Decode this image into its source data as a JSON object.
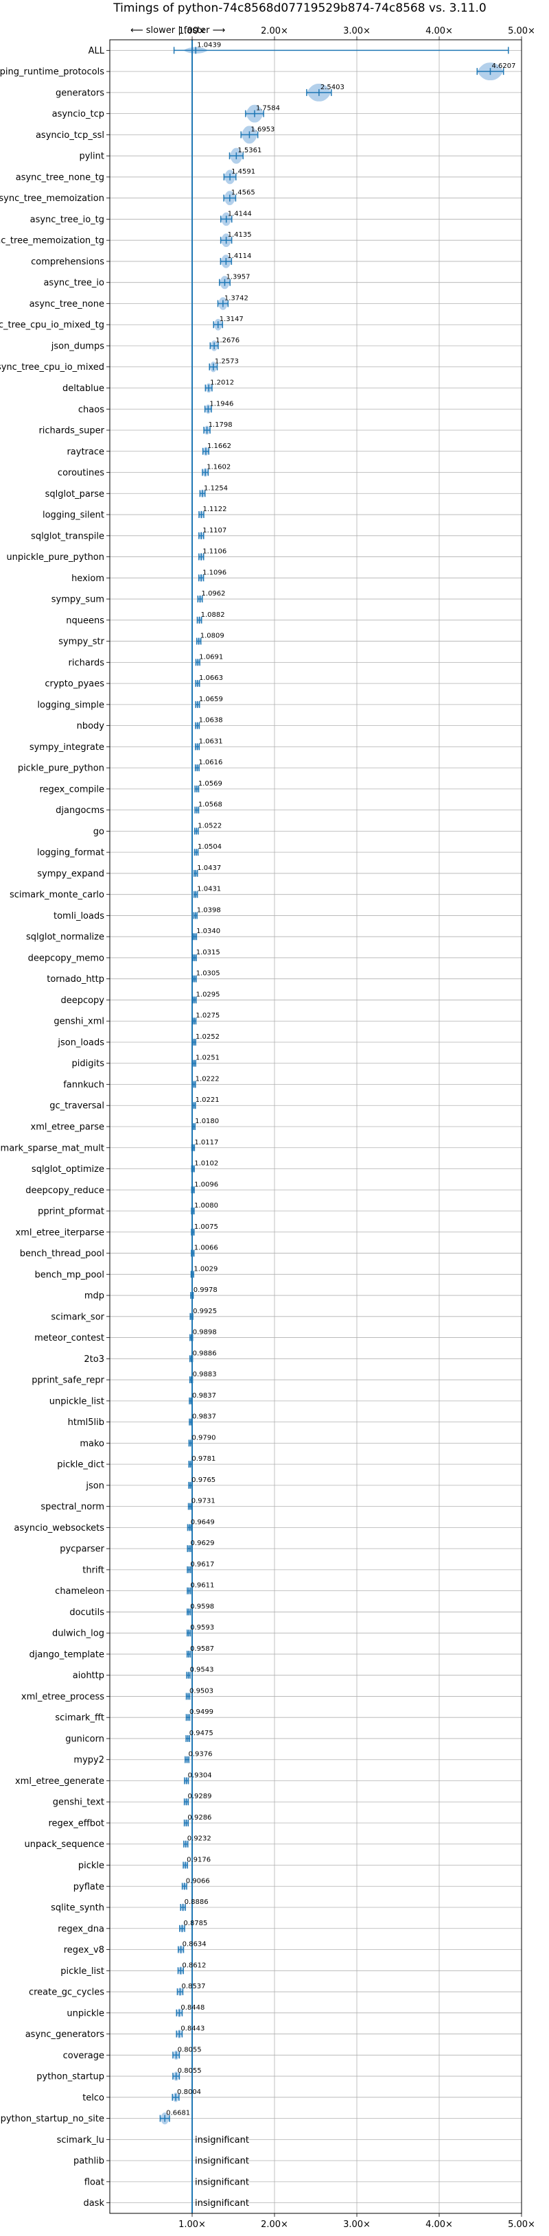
{
  "chart_data": {
    "type": "violin",
    "title": "Timings of python-74c8568d07719529b874-74c8568 vs. 3.11.0",
    "direction_label": "⟵ slower | faster ⟶",
    "xlim": [
      0,
      5
    ],
    "xticks": [
      1,
      2,
      3,
      4,
      5
    ],
    "xtick_labels": [
      "1.00×",
      "2.00×",
      "3.00×",
      "4.00×",
      "5.00×"
    ],
    "reference_line": 1.0,
    "grid": true,
    "colors": {
      "violin": "#a6c8e8",
      "line": "#1f77b4",
      "reference": "#1f77b4"
    },
    "benchmarks": [
      {
        "name": "ALL",
        "value": 1.0439,
        "label": "1.0439"
      },
      {
        "name": "typing_runtime_protocols",
        "value": 4.6207,
        "label": "4.6207"
      },
      {
        "name": "generators",
        "value": 2.5403,
        "label": "2.5403"
      },
      {
        "name": "asyncio_tcp",
        "value": 1.7584,
        "label": "1.7584"
      },
      {
        "name": "asyncio_tcp_ssl",
        "value": 1.6953,
        "label": "1.6953"
      },
      {
        "name": "pylint",
        "value": 1.5361,
        "label": "1.5361"
      },
      {
        "name": "async_tree_none_tg",
        "value": 1.4591,
        "label": "1.4591"
      },
      {
        "name": "async_tree_memoization",
        "value": 1.4565,
        "label": "1.4565"
      },
      {
        "name": "async_tree_io_tg",
        "value": 1.4144,
        "label": "1.4144"
      },
      {
        "name": "async_tree_memoization_tg",
        "value": 1.4135,
        "label": "1.4135"
      },
      {
        "name": "comprehensions",
        "value": 1.4114,
        "label": "1.4114"
      },
      {
        "name": "async_tree_io",
        "value": 1.3957,
        "label": "1.3957"
      },
      {
        "name": "async_tree_none",
        "value": 1.3742,
        "label": "1.3742"
      },
      {
        "name": "async_tree_cpu_io_mixed_tg",
        "value": 1.3147,
        "label": "1.3147"
      },
      {
        "name": "json_dumps",
        "value": 1.2676,
        "label": "1.2676"
      },
      {
        "name": "async_tree_cpu_io_mixed",
        "value": 1.2573,
        "label": "1.2573"
      },
      {
        "name": "deltablue",
        "value": 1.2012,
        "label": "1.2012"
      },
      {
        "name": "chaos",
        "value": 1.1946,
        "label": "1.1946"
      },
      {
        "name": "richards_super",
        "value": 1.1798,
        "label": "1.1798"
      },
      {
        "name": "raytrace",
        "value": 1.1662,
        "label": "1.1662"
      },
      {
        "name": "coroutines",
        "value": 1.1602,
        "label": "1.1602"
      },
      {
        "name": "sqlglot_parse",
        "value": 1.1254,
        "label": "1.1254"
      },
      {
        "name": "logging_silent",
        "value": 1.1122,
        "label": "1.1122"
      },
      {
        "name": "sqlglot_transpile",
        "value": 1.1107,
        "label": "1.1107"
      },
      {
        "name": "unpickle_pure_python",
        "value": 1.1106,
        "label": "1.1106"
      },
      {
        "name": "hexiom",
        "value": 1.1096,
        "label": "1.1096"
      },
      {
        "name": "sympy_sum",
        "value": 1.0962,
        "label": "1.0962"
      },
      {
        "name": "nqueens",
        "value": 1.0882,
        "label": "1.0882"
      },
      {
        "name": "sympy_str",
        "value": 1.0809,
        "label": "1.0809"
      },
      {
        "name": "richards",
        "value": 1.0691,
        "label": "1.0691"
      },
      {
        "name": "crypto_pyaes",
        "value": 1.0663,
        "label": "1.0663"
      },
      {
        "name": "logging_simple",
        "value": 1.0659,
        "label": "1.0659"
      },
      {
        "name": "nbody",
        "value": 1.0638,
        "label": "1.0638"
      },
      {
        "name": "sympy_integrate",
        "value": 1.0631,
        "label": "1.0631"
      },
      {
        "name": "pickle_pure_python",
        "value": 1.0616,
        "label": "1.0616"
      },
      {
        "name": "regex_compile",
        "value": 1.0569,
        "label": "1.0569"
      },
      {
        "name": "djangocms",
        "value": 1.0568,
        "label": "1.0568"
      },
      {
        "name": "go",
        "value": 1.0522,
        "label": "1.0522"
      },
      {
        "name": "logging_format",
        "value": 1.0504,
        "label": "1.0504"
      },
      {
        "name": "sympy_expand",
        "value": 1.0437,
        "label": "1.0437"
      },
      {
        "name": "scimark_monte_carlo",
        "value": 1.0431,
        "label": "1.0431"
      },
      {
        "name": "tomli_loads",
        "value": 1.0398,
        "label": "1.0398"
      },
      {
        "name": "sqlglot_normalize",
        "value": 1.034,
        "label": "1.0340"
      },
      {
        "name": "deepcopy_memo",
        "value": 1.0315,
        "label": "1.0315"
      },
      {
        "name": "tornado_http",
        "value": 1.0305,
        "label": "1.0305"
      },
      {
        "name": "deepcopy",
        "value": 1.0295,
        "label": "1.0295"
      },
      {
        "name": "genshi_xml",
        "value": 1.0275,
        "label": "1.0275"
      },
      {
        "name": "json_loads",
        "value": 1.0252,
        "label": "1.0252"
      },
      {
        "name": "pidigits",
        "value": 1.0251,
        "label": "1.0251"
      },
      {
        "name": "fannkuch",
        "value": 1.0222,
        "label": "1.0222"
      },
      {
        "name": "gc_traversal",
        "value": 1.0221,
        "label": "1.0221"
      },
      {
        "name": "xml_etree_parse",
        "value": 1.018,
        "label": "1.0180"
      },
      {
        "name": "scimark_sparse_mat_mult",
        "value": 1.0117,
        "label": "1.0117"
      },
      {
        "name": "sqlglot_optimize",
        "value": 1.0102,
        "label": "1.0102"
      },
      {
        "name": "deepcopy_reduce",
        "value": 1.0096,
        "label": "1.0096"
      },
      {
        "name": "pprint_pformat",
        "value": 1.008,
        "label": "1.0080"
      },
      {
        "name": "xml_etree_iterparse",
        "value": 1.0075,
        "label": "1.0075"
      },
      {
        "name": "bench_thread_pool",
        "value": 1.0066,
        "label": "1.0066"
      },
      {
        "name": "bench_mp_pool",
        "value": 1.0029,
        "label": "1.0029"
      },
      {
        "name": "mdp",
        "value": 0.9978,
        "label": "0.9978"
      },
      {
        "name": "scimark_sor",
        "value": 0.9925,
        "label": "0.9925"
      },
      {
        "name": "meteor_contest",
        "value": 0.9898,
        "label": "0.9898"
      },
      {
        "name": "2to3",
        "value": 0.9886,
        "label": "0.9886"
      },
      {
        "name": "pprint_safe_repr",
        "value": 0.9883,
        "label": "0.9883"
      },
      {
        "name": "unpickle_list",
        "value": 0.9837,
        "label": "0.9837"
      },
      {
        "name": "html5lib",
        "value": 0.9837,
        "label": "0.9837"
      },
      {
        "name": "mako",
        "value": 0.979,
        "label": "0.9790"
      },
      {
        "name": "pickle_dict",
        "value": 0.9781,
        "label": "0.9781"
      },
      {
        "name": "json",
        "value": 0.9765,
        "label": "0.9765"
      },
      {
        "name": "spectral_norm",
        "value": 0.9731,
        "label": "0.9731"
      },
      {
        "name": "asyncio_websockets",
        "value": 0.9649,
        "label": "0.9649"
      },
      {
        "name": "pycparser",
        "value": 0.9629,
        "label": "0.9629"
      },
      {
        "name": "thrift",
        "value": 0.9617,
        "label": "0.9617"
      },
      {
        "name": "chameleon",
        "value": 0.9611,
        "label": "0.9611"
      },
      {
        "name": "docutils",
        "value": 0.9598,
        "label": "0.9598"
      },
      {
        "name": "dulwich_log",
        "value": 0.9593,
        "label": "0.9593"
      },
      {
        "name": "django_template",
        "value": 0.9587,
        "label": "0.9587"
      },
      {
        "name": "aiohttp",
        "value": 0.9543,
        "label": "0.9543"
      },
      {
        "name": "xml_etree_process",
        "value": 0.9503,
        "label": "0.9503"
      },
      {
        "name": "scimark_fft",
        "value": 0.9499,
        "label": "0.9499"
      },
      {
        "name": "gunicorn",
        "value": 0.9475,
        "label": "0.9475"
      },
      {
        "name": "mypy2",
        "value": 0.9376,
        "label": "0.9376"
      },
      {
        "name": "xml_etree_generate",
        "value": 0.9304,
        "label": "0.9304"
      },
      {
        "name": "genshi_text",
        "value": 0.9289,
        "label": "0.9289"
      },
      {
        "name": "regex_effbot",
        "value": 0.9286,
        "label": "0.9286"
      },
      {
        "name": "unpack_sequence",
        "value": 0.9232,
        "label": "0.9232"
      },
      {
        "name": "pickle",
        "value": 0.9176,
        "label": "0.9176"
      },
      {
        "name": "pyflate",
        "value": 0.9066,
        "label": "0.9066"
      },
      {
        "name": "sqlite_synth",
        "value": 0.8886,
        "label": "0.8886"
      },
      {
        "name": "regex_dna",
        "value": 0.8785,
        "label": "0.8785"
      },
      {
        "name": "regex_v8",
        "value": 0.8634,
        "label": "0.8634"
      },
      {
        "name": "pickle_list",
        "value": 0.8612,
        "label": "0.8612"
      },
      {
        "name": "create_gc_cycles",
        "value": 0.8537,
        "label": "0.8537"
      },
      {
        "name": "unpickle",
        "value": 0.8448,
        "label": "0.8448"
      },
      {
        "name": "async_generators",
        "value": 0.8443,
        "label": "0.8443"
      },
      {
        "name": "coverage",
        "value": 0.8055,
        "label": "0.8055"
      },
      {
        "name": "python_startup",
        "value": 0.8055,
        "label": "0.8055"
      },
      {
        "name": "telco",
        "value": 0.8004,
        "label": "0.8004"
      },
      {
        "name": "python_startup_no_site",
        "value": 0.6681,
        "label": "0.6681"
      },
      {
        "name": "scimark_lu",
        "value": null,
        "label": "insignificant"
      },
      {
        "name": "pathlib",
        "value": null,
        "label": "insignificant"
      },
      {
        "name": "float",
        "value": null,
        "label": "insignificant"
      },
      {
        "name": "dask",
        "value": null,
        "label": "insignificant"
      }
    ]
  }
}
